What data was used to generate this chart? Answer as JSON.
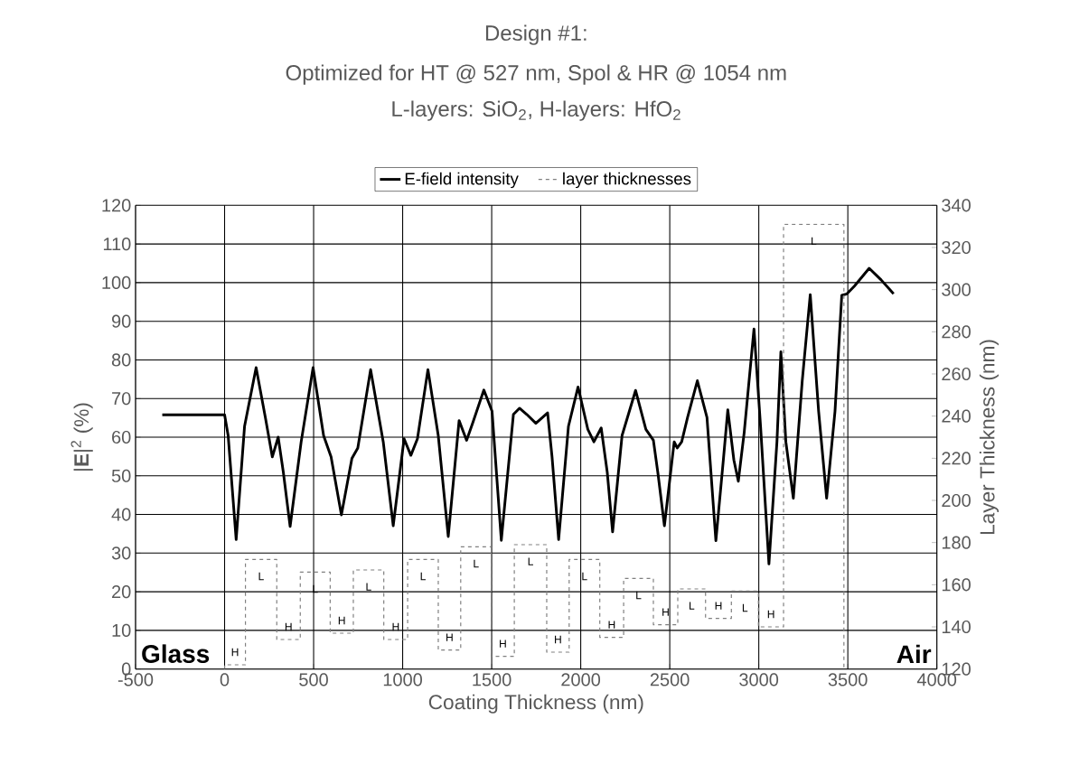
{
  "chart_data": {
    "type": "line",
    "title": "Design #1:",
    "subtitle": "Optimized for HT @ 527 nm, Spol & HR @ 1054 nm",
    "xlabel": "Coating Thickness (nm)",
    "ylabel": "|**E**|$^{2}$ (%)",
    "y2label": "Layer Thickness (nm)",
    "annotations": [
      "L-layers: SiO$_{2}$, H-layers: HfO$_{2}$",
      "Glass",
      "Air",
      "H",
      "L",
      "H",
      "L",
      "H",
      "L",
      "H",
      "L",
      "H",
      "L",
      "H",
      "L",
      "H",
      "L",
      "H",
      "L",
      "H",
      "L",
      "H",
      "L",
      "H",
      "L"
    ],
    "series": [
      {
        "name": "E-field intensity",
        "color": "#000000",
        "x": [
          -350,
          0,
          20,
          65,
          112,
          177,
          229,
          268,
          301,
          330,
          368,
          430,
          497,
          556,
          598,
          656,
          715,
          748,
          820,
          891,
          947,
          1008,
          1046,
          1083,
          1142,
          1200,
          1256,
          1317,
          1359,
          1393,
          1456,
          1502,
          1554,
          1622,
          1656,
          1697,
          1748,
          1814,
          1839,
          1876,
          1931,
          1985,
          2040,
          2074,
          2115,
          2149,
          2179,
          2232,
          2308,
          2366,
          2408,
          2433,
          2470,
          2525,
          2542,
          2567,
          2600,
          2655,
          2709,
          2759,
          2801,
          2826,
          2860,
          2885,
          2918,
          2973,
          3010,
          3057,
          3102,
          3124,
          3152,
          3194,
          3244,
          3289,
          3336,
          3381,
          3428,
          3466,
          3495,
          3537,
          3620,
          3687,
          3757
        ],
        "values": [
          65.8,
          65.8,
          60.4,
          33.5,
          62.8,
          78.0,
          65.1,
          54.9,
          60.0,
          50.9,
          36.9,
          58.8,
          78.0,
          60.4,
          54.9,
          39.9,
          54.5,
          57.2,
          77.5,
          58.8,
          37.1,
          59.6,
          55.3,
          59.6,
          77.5,
          60.4,
          34.3,
          64.3,
          59.2,
          63.6,
          72.2,
          66.7,
          33.3,
          65.9,
          67.5,
          65.9,
          63.6,
          66.3,
          54.9,
          33.5,
          62.8,
          73.0,
          62.0,
          58.8,
          62.4,
          50.9,
          35.5,
          60.4,
          72.1,
          62.0,
          59.2,
          50.9,
          37.1,
          58.8,
          57.2,
          58.8,
          65.1,
          74.6,
          65.1,
          33.2,
          54.1,
          67.1,
          54.1,
          48.6,
          61.2,
          88.0,
          62.8,
          27.2,
          58.8,
          82.1,
          58.8,
          44.2,
          74.6,
          96.9,
          66.7,
          44.2,
          66.7,
          96.7,
          97.1,
          99.1,
          103.7,
          100.7,
          97.1
        ]
      },
      {
        "name": "layer thicknesses",
        "color": "#808080",
        "type": "step",
        "axis": "y2",
        "line_style": "dashed",
        "x": [
          0,
          0,
          117,
          293,
          425,
          593,
          723,
          894,
          1028,
          1200,
          1326,
          1498,
          1627,
          1809,
          1935,
          2107,
          2241,
          2408,
          2545,
          2701,
          2846,
          2998,
          3139,
          3478
        ],
        "values": [
          120,
          122,
          172,
          134,
          166,
          137,
          167,
          134,
          172,
          129,
          178,
          126,
          179,
          128,
          172,
          135,
          163,
          141,
          158,
          144,
          157,
          140,
          331,
          120
        ]
      }
    ],
    "xlim": [
      -500,
      4000
    ],
    "xticks": [
      -500,
      0,
      500,
      1000,
      1500,
      2000,
      2500,
      3000,
      3500,
      4000
    ],
    "ylim": [
      0,
      120
    ],
    "yticks": [
      0,
      10,
      20,
      30,
      40,
      50,
      60,
      70,
      80,
      90,
      100,
      110,
      120
    ],
    "y2lim": [
      120,
      340
    ],
    "y2ticks": [
      120,
      140,
      160,
      180,
      200,
      220,
      240,
      260,
      280,
      300,
      320,
      340
    ],
    "grid": true,
    "legend": "top"
  }
}
